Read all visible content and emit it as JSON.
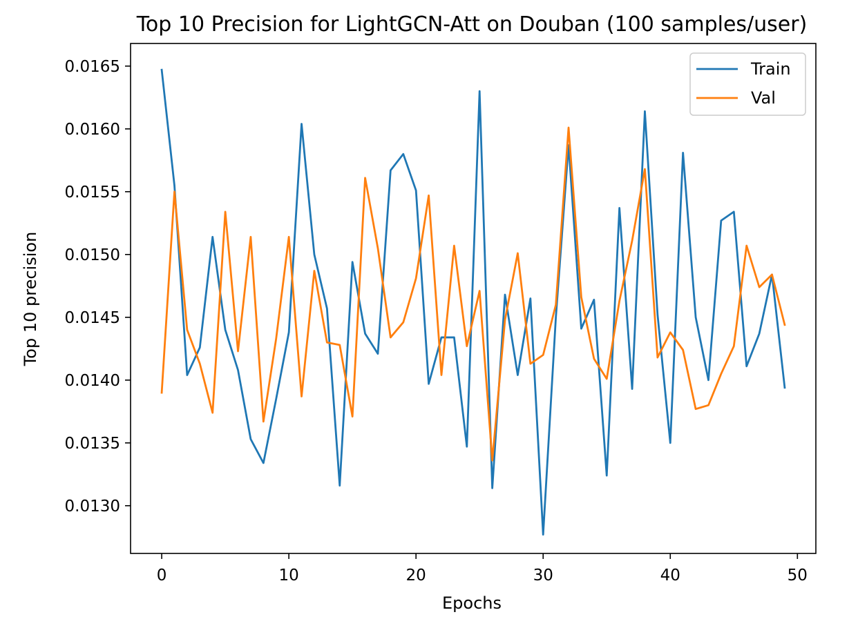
{
  "chart_data": {
    "type": "line",
    "title": "Top 10 Precision for LightGCN-Att on Douban (100 samples/user)",
    "xlabel": "Epochs",
    "ylabel": "Top 10 precision",
    "xlim": [
      -2.45,
      51.45
    ],
    "ylim": [
      0.01262,
      0.01668
    ],
    "x_ticks": [
      0,
      10,
      20,
      30,
      40,
      50
    ],
    "x_tick_labels": [
      "0",
      "10",
      "20",
      "30",
      "40",
      "50"
    ],
    "y_ticks": [
      0.013,
      0.0135,
      0.014,
      0.0145,
      0.015,
      0.0155,
      0.016,
      0.0165
    ],
    "y_tick_labels": [
      "0.0130",
      "0.0135",
      "0.0140",
      "0.0145",
      "0.0150",
      "0.0155",
      "0.0160",
      "0.0165"
    ],
    "grid": false,
    "legend_position": "top-right",
    "x": [
      0,
      1,
      2,
      3,
      4,
      5,
      6,
      7,
      8,
      9,
      10,
      11,
      12,
      13,
      14,
      15,
      16,
      17,
      18,
      19,
      20,
      21,
      22,
      23,
      24,
      25,
      26,
      27,
      28,
      29,
      30,
      31,
      32,
      33,
      34,
      35,
      36,
      37,
      38,
      39,
      40,
      41,
      42,
      43,
      44,
      45,
      46,
      47,
      48,
      49
    ],
    "series": [
      {
        "name": "Train",
        "color": "#1f77b4",
        "values": [
          0.01647,
          0.01555,
          0.01404,
          0.01426,
          0.01514,
          0.0144,
          0.01408,
          0.01353,
          0.01334,
          0.01385,
          0.01438,
          0.01604,
          0.015,
          0.01457,
          0.01316,
          0.01494,
          0.01437,
          0.01421,
          0.01567,
          0.0158,
          0.01551,
          0.01397,
          0.01434,
          0.01434,
          0.01347,
          0.0163,
          0.01314,
          0.01468,
          0.01404,
          0.01465,
          0.01277,
          0.0145,
          0.01587,
          0.01441,
          0.01464,
          0.01324,
          0.01537,
          0.01393,
          0.01614,
          0.01452,
          0.0135,
          0.01581,
          0.0145,
          0.014,
          0.01527,
          0.01534,
          0.01411,
          0.01437,
          0.01484,
          0.01394
        ]
      },
      {
        "name": "Val",
        "color": "#ff7f0e",
        "values": [
          0.0139,
          0.0155,
          0.0144,
          0.01413,
          0.01374,
          0.01534,
          0.01423,
          0.01514,
          0.01367,
          0.01433,
          0.01514,
          0.01387,
          0.01487,
          0.0143,
          0.01428,
          0.01371,
          0.01561,
          0.01505,
          0.01434,
          0.01446,
          0.01481,
          0.01547,
          0.01404,
          0.01507,
          0.01427,
          0.01471,
          0.01336,
          0.01448,
          0.01501,
          0.01413,
          0.0142,
          0.0146,
          0.01601,
          0.01466,
          0.01417,
          0.01401,
          0.01463,
          0.01511,
          0.01568,
          0.01418,
          0.01438,
          0.01424,
          0.01377,
          0.0138,
          0.01405,
          0.01427,
          0.01507,
          0.01474,
          0.01484,
          0.01444
        ]
      }
    ]
  }
}
